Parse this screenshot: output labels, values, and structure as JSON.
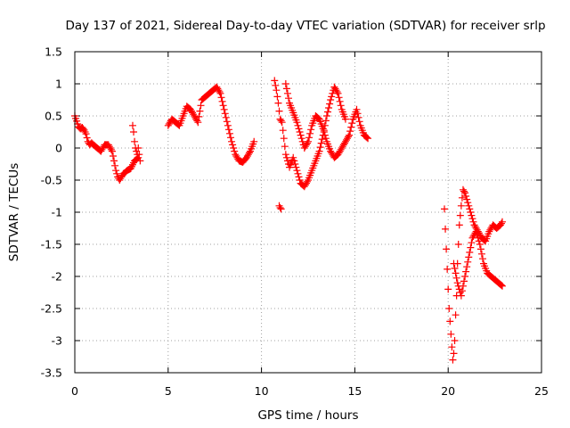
{
  "chart_data": {
    "type": "scatter",
    "title": "Day 137 of 2021, Sidereal Day-to-day VTEC variation (SDTVAR) for receiver srlp",
    "xlabel": "GPS time / hours",
    "ylabel": "SDTVAR / TECUs",
    "xlim": [
      0,
      25
    ],
    "ylim": [
      -3.5,
      1.5
    ],
    "grid": true,
    "marker": "+",
    "color": "#ff0000",
    "x_ticks": [
      0,
      5,
      10,
      15,
      20,
      25
    ],
    "x_tick_labels": [
      "0",
      "5",
      "10",
      "15",
      "20",
      "25"
    ],
    "y_ticks": [
      1.5,
      1,
      0.5,
      0,
      -0.5,
      -1,
      -1.5,
      -2,
      -2.5,
      -3,
      -3.5
    ],
    "y_tick_labels": [
      "1.5",
      "1",
      "0.5",
      "0",
      "-0.5",
      "-1",
      "-1.5",
      "-2",
      "-2.5",
      "-3",
      "-3.5"
    ],
    "series": [
      {
        "name": "seg1",
        "x": [
          0,
          0.1,
          0.2,
          0.3,
          0.4,
          0.5,
          0.6,
          0.7,
          0.8,
          0.9,
          1.0,
          1.2,
          1.4,
          1.6,
          1.8,
          2.0,
          2.1,
          2.2,
          2.3,
          2.4,
          2.5,
          2.6,
          2.7,
          2.8,
          3.0,
          3.2,
          3.4
        ],
        "y": [
          0.5,
          0.42,
          0.33,
          0.3,
          0.32,
          0.28,
          0.22,
          0.1,
          0.05,
          0.08,
          0.05,
          0.0,
          -0.05,
          0.05,
          0.05,
          -0.05,
          -0.2,
          -0.35,
          -0.45,
          -0.5,
          -0.45,
          -0.4,
          -0.38,
          -0.35,
          -0.32,
          -0.2,
          -0.15
        ]
      },
      {
        "name": "seg1b",
        "x": [
          3.1,
          3.15,
          3.2,
          3.25,
          3.3,
          3.35,
          3.4,
          3.45,
          3.5
        ],
        "y": [
          0.35,
          0.25,
          0.1,
          0.0,
          -0.05,
          -0.1,
          0.0,
          -0.1,
          -0.2
        ]
      },
      {
        "name": "seg2",
        "x": [
          5.0,
          5.2,
          5.4,
          5.6,
          5.8,
          6.0,
          6.2,
          6.4,
          6.6,
          6.8,
          7.0,
          7.2,
          7.4,
          7.6,
          7.8,
          8.0,
          8.2,
          8.4,
          8.6,
          8.8,
          9.0,
          9.2,
          9.4,
          9.6
        ],
        "y": [
          0.35,
          0.45,
          0.4,
          0.35,
          0.5,
          0.65,
          0.6,
          0.5,
          0.4,
          0.75,
          0.8,
          0.85,
          0.9,
          0.95,
          0.85,
          0.6,
          0.35,
          0.1,
          -0.1,
          -0.2,
          -0.22,
          -0.15,
          -0.05,
          0.1
        ]
      },
      {
        "name": "seg3",
        "x": [
          10.7,
          10.8,
          10.9,
          11.0,
          11.1,
          11.3,
          11.5,
          11.7,
          11.9,
          12.1,
          12.3,
          12.5,
          12.7,
          12.9,
          13.1,
          13.3,
          13.5,
          13.7,
          13.9,
          14.1,
          14.3,
          14.5
        ],
        "y": [
          1.05,
          0.9,
          0.7,
          0.45,
          0.4,
          -0.1,
          -0.3,
          -0.15,
          -0.35,
          -0.55,
          -0.6,
          -0.5,
          -0.35,
          -0.2,
          -0.05,
          0.2,
          0.5,
          0.75,
          0.95,
          0.85,
          0.6,
          0.45
        ]
      },
      {
        "name": "seg3b",
        "x": [
          11.3,
          11.5,
          11.7,
          11.9,
          12.1,
          12.3,
          12.5,
          12.7,
          12.9,
          13.1,
          13.3,
          13.5,
          13.7,
          13.9,
          14.1,
          14.3,
          14.5,
          14.7,
          14.9,
          15.1,
          15.3,
          15.5,
          15.7
        ],
        "y": [
          1.0,
          0.7,
          0.55,
          0.4,
          0.2,
          0.0,
          0.1,
          0.35,
          0.5,
          0.45,
          0.3,
          0.1,
          -0.05,
          -0.15,
          -0.1,
          0.0,
          0.1,
          0.2,
          0.45,
          0.6,
          0.35,
          0.2,
          0.15
        ]
      },
      {
        "name": "seg3c",
        "x": [
          10.95,
          11.0,
          11.05
        ],
        "y": [
          -0.9,
          -0.93,
          -0.95
        ]
      },
      {
        "name": "seg4",
        "x": [
          19.8,
          20.0,
          20.05,
          20.1,
          20.15,
          20.2,
          20.25,
          20.3,
          20.35,
          20.4,
          20.45,
          20.5,
          20.55,
          20.6,
          20.7,
          20.8,
          20.9,
          21.0,
          21.2,
          21.4,
          21.6,
          21.8,
          22.0,
          22.2,
          22.4,
          22.6,
          22.8,
          22.9
        ],
        "y": [
          -0.95,
          -2.2,
          -2.5,
          -2.7,
          -2.9,
          -3.1,
          -3.3,
          -3.2,
          -3.0,
          -2.6,
          -2.3,
          -1.8,
          -1.5,
          -1.2,
          -0.9,
          -0.65,
          -0.7,
          -0.8,
          -1.0,
          -1.2,
          -1.3,
          -1.4,
          -1.45,
          -1.3,
          -1.2,
          -1.25,
          -1.2,
          -1.15
        ]
      },
      {
        "name": "seg4b",
        "x": [
          20.3,
          20.5,
          20.7,
          20.9,
          21.1,
          21.3,
          21.5,
          21.7,
          21.9,
          22.1,
          22.3,
          22.5,
          22.7,
          22.9
        ],
        "y": [
          -1.8,
          -2.1,
          -2.3,
          -2.0,
          -1.7,
          -1.4,
          -1.3,
          -1.5,
          -1.8,
          -1.95,
          -2.0,
          -2.05,
          -2.1,
          -2.15
        ]
      }
    ]
  }
}
